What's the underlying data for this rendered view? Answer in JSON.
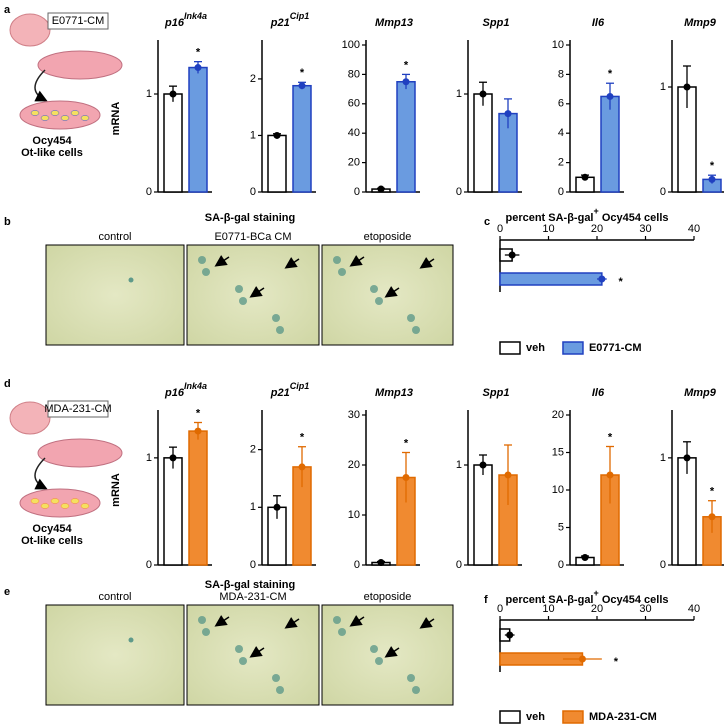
{
  "panels": [
    "a",
    "b",
    "c",
    "d",
    "e",
    "f"
  ],
  "schematics": [
    {
      "label": "E0771-CM",
      "cells": "Ocy454",
      "cells_sub": "Ot-like cells"
    },
    {
      "label": "MDA-231-CM",
      "cells": "Ocy454",
      "cells_sub": "Ot-like cells"
    }
  ],
  "micrographs": [
    {
      "title": "SA-β-gal staining",
      "images": [
        "control",
        "E0771-BCa CM",
        "etoposide"
      ]
    },
    {
      "title": "SA-β-gal staining",
      "images": [
        "control",
        "MDA-231-CM",
        "etoposide"
      ]
    }
  ],
  "chart_data": [
    {
      "type": "bar",
      "title": "p16",
      "title_sup": "Ink4a",
      "ylabel": "mRNA",
      "values": [
        1.0,
        1.27
      ],
      "errors": [
        0.08,
        0.06
      ],
      "colors": [
        "#ffffff",
        "#6a9be0"
      ],
      "annotations": [
        null,
        "*"
      ],
      "ylim": [
        0,
        1.5
      ],
      "yticks": [
        0,
        1
      ]
    },
    {
      "type": "bar",
      "title": "p21",
      "title_sup": "Cip1",
      "values": [
        1.0,
        1.88
      ],
      "errors": [
        0.03,
        0.06
      ],
      "colors": [
        "#ffffff",
        "#6a9be0"
      ],
      "annotations": [
        null,
        "*"
      ],
      "ylim": [
        0,
        2.6
      ],
      "yticks": [
        0,
        1,
        2
      ]
    },
    {
      "type": "bar",
      "title": "Mmp13",
      "values": [
        2,
        75
      ],
      "errors": [
        0.5,
        5
      ],
      "colors": [
        "#ffffff",
        "#6a9be0"
      ],
      "annotations": [
        null,
        "*"
      ],
      "ylim": [
        0,
        100
      ],
      "yticks": [
        0,
        20,
        40,
        60,
        80,
        100
      ]
    },
    {
      "type": "bar",
      "title": "Spp1",
      "values": [
        1.0,
        0.8
      ],
      "errors": [
        0.12,
        0.15
      ],
      "colors": [
        "#ffffff",
        "#6a9be0"
      ],
      "annotations": [
        null,
        null
      ],
      "ylim": [
        0,
        1.5
      ],
      "yticks": [
        0,
        1
      ]
    },
    {
      "type": "bar",
      "title": "Il6",
      "values": [
        1.0,
        6.5
      ],
      "errors": [
        0.15,
        0.9
      ],
      "colors": [
        "#ffffff",
        "#6a9be0"
      ],
      "annotations": [
        null,
        "*"
      ],
      "ylim": [
        0,
        10
      ],
      "yticks": [
        0,
        2,
        4,
        6,
        8,
        10
      ]
    },
    {
      "type": "bar",
      "title": "Mmp9",
      "values": [
        1.0,
        0.12
      ],
      "errors": [
        0.2,
        0.04
      ],
      "colors": [
        "#ffffff",
        "#6a9be0"
      ],
      "annotations": [
        null,
        "*"
      ],
      "ylim": [
        0,
        1.4
      ],
      "yticks": [
        0,
        1
      ]
    },
    {
      "type": "barh",
      "title": "percent SA-β-gal",
      "title_sup": "+",
      "title_rest": " Ocy454 cells",
      "series": [
        {
          "name": "veh",
          "color": "#ffffff",
          "values": [
            2.5
          ],
          "errors": [
            1.5
          ]
        },
        {
          "name": "E0771-CM",
          "color": "#6a9be0",
          "values": [
            21
          ],
          "errors": [
            1
          ]
        }
      ],
      "annotations": [
        null,
        "*"
      ],
      "xlim": [
        0,
        40
      ],
      "xticks": [
        0,
        10,
        20,
        30,
        40
      ]
    },
    {
      "type": "bar",
      "title": "p16",
      "title_sup": "Ink4a",
      "ylabel": "mRNA",
      "values": [
        1.0,
        1.25
      ],
      "errors": [
        0.1,
        0.08
      ],
      "colors": [
        "#ffffff",
        "#f08a30"
      ],
      "annotations": [
        null,
        "*"
      ],
      "ylim": [
        0,
        1.4
      ],
      "yticks": [
        0,
        1
      ]
    },
    {
      "type": "bar",
      "title": "p21",
      "title_sup": "Cip1",
      "values": [
        1.0,
        1.7
      ],
      "errors": [
        0.2,
        0.35
      ],
      "colors": [
        "#ffffff",
        "#f08a30"
      ],
      "annotations": [
        null,
        "*"
      ],
      "ylim": [
        0,
        2.6
      ],
      "yticks": [
        0,
        1,
        2
      ]
    },
    {
      "type": "bar",
      "title": "Mmp13",
      "values": [
        0.5,
        17.5
      ],
      "errors": [
        0.2,
        5
      ],
      "colors": [
        "#ffffff",
        "#f08a30"
      ],
      "annotations": [
        null,
        "*"
      ],
      "ylim": [
        0,
        30
      ],
      "yticks": [
        0,
        10,
        20,
        30
      ]
    },
    {
      "type": "bar",
      "title": "Spp1",
      "values": [
        1.0,
        0.9
      ],
      "errors": [
        0.1,
        0.3
      ],
      "colors": [
        "#ffffff",
        "#f08a30"
      ],
      "annotations": [
        null,
        null
      ],
      "ylim": [
        0,
        1.5
      ],
      "yticks": [
        0,
        1
      ]
    },
    {
      "type": "bar",
      "title": "Il6",
      "values": [
        1,
        12
      ],
      "errors": [
        0.2,
        3.8
      ],
      "colors": [
        "#ffffff",
        "#f08a30"
      ],
      "annotations": [
        null,
        "*"
      ],
      "ylim": [
        0,
        20
      ],
      "yticks": [
        0,
        5,
        10,
        15,
        20
      ]
    },
    {
      "type": "bar",
      "title": "Mmp9",
      "values": [
        1.0,
        0.45
      ],
      "errors": [
        0.15,
        0.15
      ],
      "colors": [
        "#ffffff",
        "#f08a30"
      ],
      "annotations": [
        null,
        "*"
      ],
      "ylim": [
        0,
        1.4
      ],
      "yticks": [
        0,
        1
      ]
    },
    {
      "type": "barh",
      "title": "percent SA-β-gal",
      "title_sup": "+",
      "title_rest": " Ocy454 cells",
      "series": [
        {
          "name": "veh",
          "color": "#ffffff",
          "values": [
            2
          ],
          "errors": [
            1
          ]
        },
        {
          "name": "MDA-231-CM",
          "color": "#f08a30",
          "values": [
            17
          ],
          "errors": [
            4
          ]
        }
      ],
      "annotations": [
        null,
        "*"
      ],
      "xlim": [
        0,
        40
      ],
      "xticks": [
        0,
        10,
        20,
        30,
        40
      ]
    }
  ]
}
